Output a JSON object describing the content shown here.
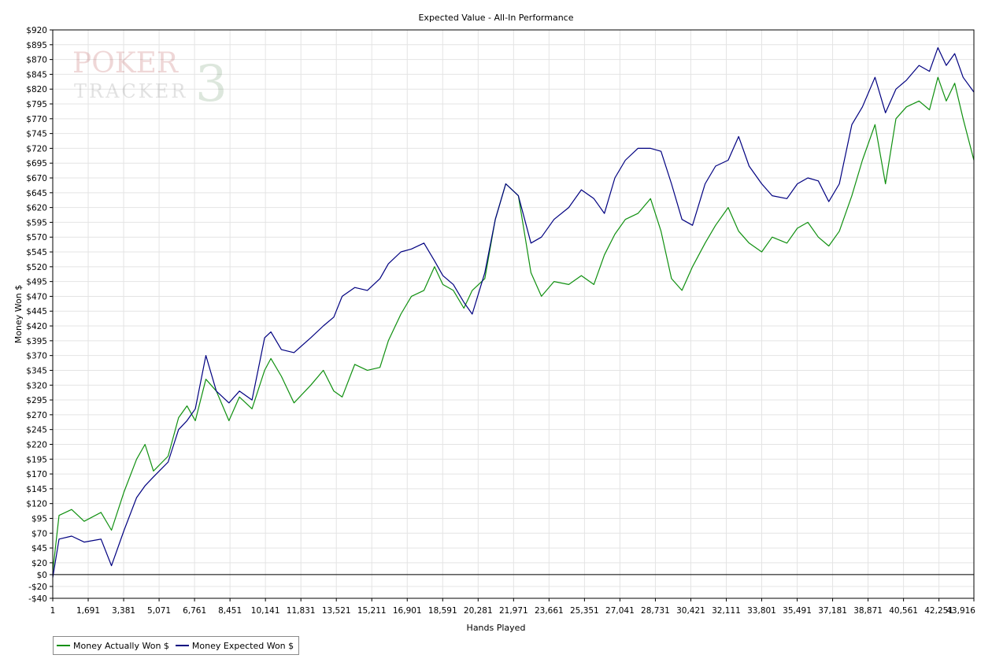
{
  "chart_data": {
    "type": "line",
    "title": "Expected Value - All-In Performance",
    "xlabel": "Hands Played",
    "ylabel": "Money Won $",
    "xlim": [
      1,
      43916
    ],
    "ylim": [
      -40,
      920
    ],
    "x_ticks": [
      1,
      1691,
      3381,
      5071,
      6761,
      8451,
      10141,
      11831,
      13521,
      15211,
      16901,
      18591,
      20281,
      21971,
      23661,
      25351,
      27041,
      28731,
      30421,
      32111,
      33801,
      35491,
      37181,
      38871,
      40561,
      42251,
      43916
    ],
    "x_tick_labels": [
      "1",
      "1,691",
      "3,381",
      "5,071",
      "6,761",
      "8,451",
      "10,141",
      "11,831",
      "13,521",
      "15,211",
      "16,901",
      "18,591",
      "20,281",
      "21,971",
      "23,661",
      "25,351",
      "27,041",
      "28,731",
      "30,421",
      "32,111",
      "33,801",
      "35,491",
      "37,181",
      "38,871",
      "40,561",
      "42,251",
      "43,916"
    ],
    "y_ticks": [
      -40,
      -20,
      0,
      20,
      45,
      70,
      95,
      120,
      145,
      170,
      195,
      220,
      245,
      270,
      295,
      320,
      345,
      370,
      395,
      420,
      445,
      470,
      495,
      520,
      545,
      570,
      595,
      620,
      645,
      670,
      695,
      720,
      745,
      770,
      795,
      820,
      845,
      870,
      895,
      920
    ],
    "y_tick_labels": [
      "-$40",
      "-$20",
      "$0",
      "$20",
      "$45",
      "$70",
      "$95",
      "$120",
      "$145",
      "$170",
      "$195",
      "$220",
      "$245",
      "$270",
      "$295",
      "$320",
      "$345",
      "$370",
      "$395",
      "$420",
      "$445",
      "$470",
      "$495",
      "$520",
      "$545",
      "$570",
      "$595",
      "$620",
      "$645",
      "$670",
      "$695",
      "$720",
      "$745",
      "$770",
      "$795",
      "$820",
      "$845",
      "$870",
      "$895",
      "$920"
    ],
    "grid": true,
    "legend_position": "bottom-left",
    "series": [
      {
        "name": "Money Actually Won $",
        "color": "#109010",
        "points": [
          [
            1,
            5
          ],
          [
            300,
            100
          ],
          [
            900,
            110
          ],
          [
            1500,
            90
          ],
          [
            2300,
            105
          ],
          [
            2800,
            75
          ],
          [
            3400,
            140
          ],
          [
            4000,
            195
          ],
          [
            4400,
            220
          ],
          [
            4800,
            175
          ],
          [
            5500,
            200
          ],
          [
            6000,
            265
          ],
          [
            6400,
            285
          ],
          [
            6800,
            260
          ],
          [
            7300,
            330
          ],
          [
            7800,
            310
          ],
          [
            8400,
            260
          ],
          [
            8900,
            300
          ],
          [
            9500,
            280
          ],
          [
            10100,
            345
          ],
          [
            10400,
            365
          ],
          [
            10900,
            335
          ],
          [
            11500,
            290
          ],
          [
            12300,
            320
          ],
          [
            12900,
            345
          ],
          [
            13400,
            310
          ],
          [
            13800,
            300
          ],
          [
            14400,
            355
          ],
          [
            15000,
            345
          ],
          [
            15600,
            350
          ],
          [
            16000,
            395
          ],
          [
            16600,
            440
          ],
          [
            17100,
            470
          ],
          [
            17700,
            480
          ],
          [
            18200,
            520
          ],
          [
            18600,
            490
          ],
          [
            19100,
            480
          ],
          [
            19600,
            450
          ],
          [
            20000,
            480
          ],
          [
            20600,
            500
          ],
          [
            21100,
            600
          ],
          [
            21600,
            660
          ],
          [
            22200,
            640
          ],
          [
            22800,
            510
          ],
          [
            23300,
            470
          ],
          [
            23900,
            495
          ],
          [
            24600,
            490
          ],
          [
            25200,
            505
          ],
          [
            25800,
            490
          ],
          [
            26300,
            540
          ],
          [
            26800,
            575
          ],
          [
            27300,
            600
          ],
          [
            27900,
            610
          ],
          [
            28500,
            635
          ],
          [
            29000,
            580
          ],
          [
            29500,
            500
          ],
          [
            30000,
            480
          ],
          [
            30500,
            520
          ],
          [
            31100,
            560
          ],
          [
            31600,
            590
          ],
          [
            32200,
            620
          ],
          [
            32700,
            580
          ],
          [
            33200,
            560
          ],
          [
            33800,
            545
          ],
          [
            34300,
            570
          ],
          [
            35000,
            560
          ],
          [
            35500,
            585
          ],
          [
            36000,
            595
          ],
          [
            36500,
            570
          ],
          [
            37000,
            555
          ],
          [
            37500,
            580
          ],
          [
            38100,
            640
          ],
          [
            38600,
            700
          ],
          [
            39200,
            760
          ],
          [
            39700,
            660
          ],
          [
            40200,
            770
          ],
          [
            40700,
            790
          ],
          [
            41300,
            800
          ],
          [
            41800,
            785
          ],
          [
            42200,
            840
          ],
          [
            42600,
            800
          ],
          [
            43000,
            830
          ],
          [
            43400,
            770
          ],
          [
            43916,
            700
          ]
        ]
      },
      {
        "name": "Money Expected Won $",
        "color": "#000080",
        "points": [
          [
            1,
            -5
          ],
          [
            300,
            60
          ],
          [
            900,
            65
          ],
          [
            1500,
            55
          ],
          [
            2300,
            60
          ],
          [
            2800,
            15
          ],
          [
            3400,
            75
          ],
          [
            4000,
            130
          ],
          [
            4400,
            150
          ],
          [
            4800,
            165
          ],
          [
            5500,
            190
          ],
          [
            6000,
            245
          ],
          [
            6400,
            260
          ],
          [
            6800,
            280
          ],
          [
            7300,
            370
          ],
          [
            7800,
            310
          ],
          [
            8400,
            290
          ],
          [
            8900,
            310
          ],
          [
            9500,
            295
          ],
          [
            10100,
            400
          ],
          [
            10400,
            410
          ],
          [
            10900,
            380
          ],
          [
            11500,
            375
          ],
          [
            12300,
            400
          ],
          [
            12900,
            420
          ],
          [
            13400,
            435
          ],
          [
            13800,
            470
          ],
          [
            14400,
            485
          ],
          [
            15000,
            480
          ],
          [
            15600,
            500
          ],
          [
            16000,
            525
          ],
          [
            16600,
            545
          ],
          [
            17100,
            550
          ],
          [
            17700,
            560
          ],
          [
            18200,
            530
          ],
          [
            18600,
            505
          ],
          [
            19100,
            490
          ],
          [
            19600,
            460
          ],
          [
            20000,
            440
          ],
          [
            20600,
            510
          ],
          [
            21100,
            600
          ],
          [
            21600,
            660
          ],
          [
            22200,
            640
          ],
          [
            22800,
            560
          ],
          [
            23300,
            570
          ],
          [
            23900,
            600
          ],
          [
            24600,
            620
          ],
          [
            25200,
            650
          ],
          [
            25800,
            635
          ],
          [
            26300,
            610
          ],
          [
            26800,
            670
          ],
          [
            27300,
            700
          ],
          [
            27900,
            720
          ],
          [
            28500,
            720
          ],
          [
            29000,
            715
          ],
          [
            29500,
            660
          ],
          [
            30000,
            600
          ],
          [
            30500,
            590
          ],
          [
            31100,
            660
          ],
          [
            31600,
            690
          ],
          [
            32200,
            700
          ],
          [
            32700,
            740
          ],
          [
            33200,
            690
          ],
          [
            33800,
            660
          ],
          [
            34300,
            640
          ],
          [
            35000,
            635
          ],
          [
            35500,
            660
          ],
          [
            36000,
            670
          ],
          [
            36500,
            665
          ],
          [
            37000,
            630
          ],
          [
            37500,
            660
          ],
          [
            38100,
            760
          ],
          [
            38600,
            790
          ],
          [
            39200,
            840
          ],
          [
            39700,
            780
          ],
          [
            40200,
            820
          ],
          [
            40700,
            835
          ],
          [
            41300,
            860
          ],
          [
            41800,
            850
          ],
          [
            42200,
            890
          ],
          [
            42600,
            860
          ],
          [
            43000,
            880
          ],
          [
            43400,
            840
          ],
          [
            43916,
            815
          ]
        ]
      }
    ]
  },
  "watermark": {
    "line1": "POKER",
    "line2": "TRACKER",
    "number": "3"
  }
}
